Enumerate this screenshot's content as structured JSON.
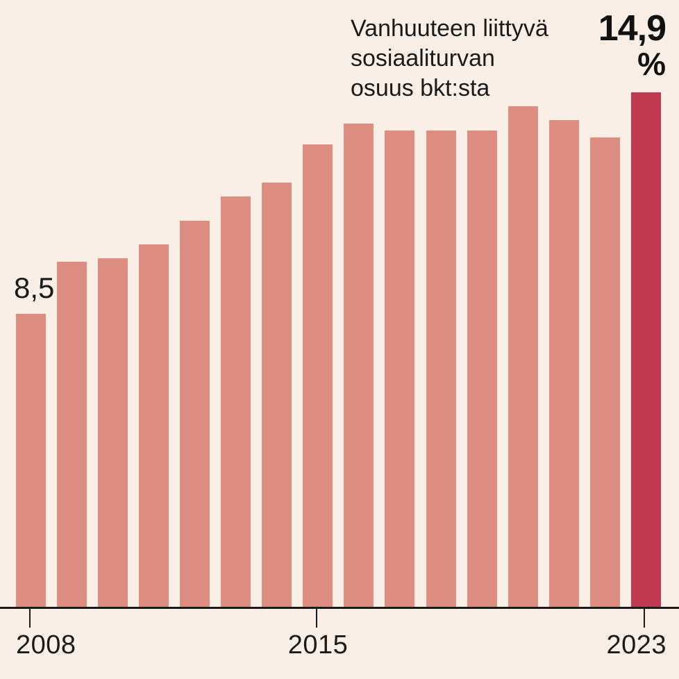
{
  "header": {
    "title_lines": [
      "Vanhuuteen liittyvä",
      "sosiaaliturvan",
      "osuus bkt:sta"
    ],
    "big_value": "14,9",
    "big_value_unit": "%"
  },
  "annotations": {
    "first_bar_label": "8,5"
  },
  "colors": {
    "background": "#f9efe7",
    "bar": "#dd8e81",
    "bar_highlight": "#bf3a51",
    "ink": "#1a1a1a"
  },
  "chart_data": {
    "type": "bar",
    "title": "Vanhuuteen liittyvä sosiaaliturvan osuus bkt:sta",
    "unit": "% of GDP (bkt:sta)",
    "categories": [
      2008,
      2009,
      2010,
      2011,
      2012,
      2013,
      2014,
      2015,
      2016,
      2017,
      2018,
      2019,
      2020,
      2021,
      2022,
      2023
    ],
    "values": [
      8.5,
      10.0,
      10.1,
      10.5,
      11.2,
      11.9,
      12.3,
      13.4,
      14.0,
      13.8,
      13.8,
      13.8,
      14.5,
      14.1,
      13.6,
      14.9
    ],
    "highlight_category": 2023,
    "data_labels": {
      "first_bar": "8,5",
      "last_bar": "14,9 %"
    },
    "x_ticks": [
      2008,
      2015,
      2023
    ],
    "x_tick_labels": [
      "2008",
      "2015",
      "2023"
    ],
    "ylim": [
      0,
      17.6
    ],
    "grid": false,
    "legend": "none",
    "y_axis_visible": false
  }
}
